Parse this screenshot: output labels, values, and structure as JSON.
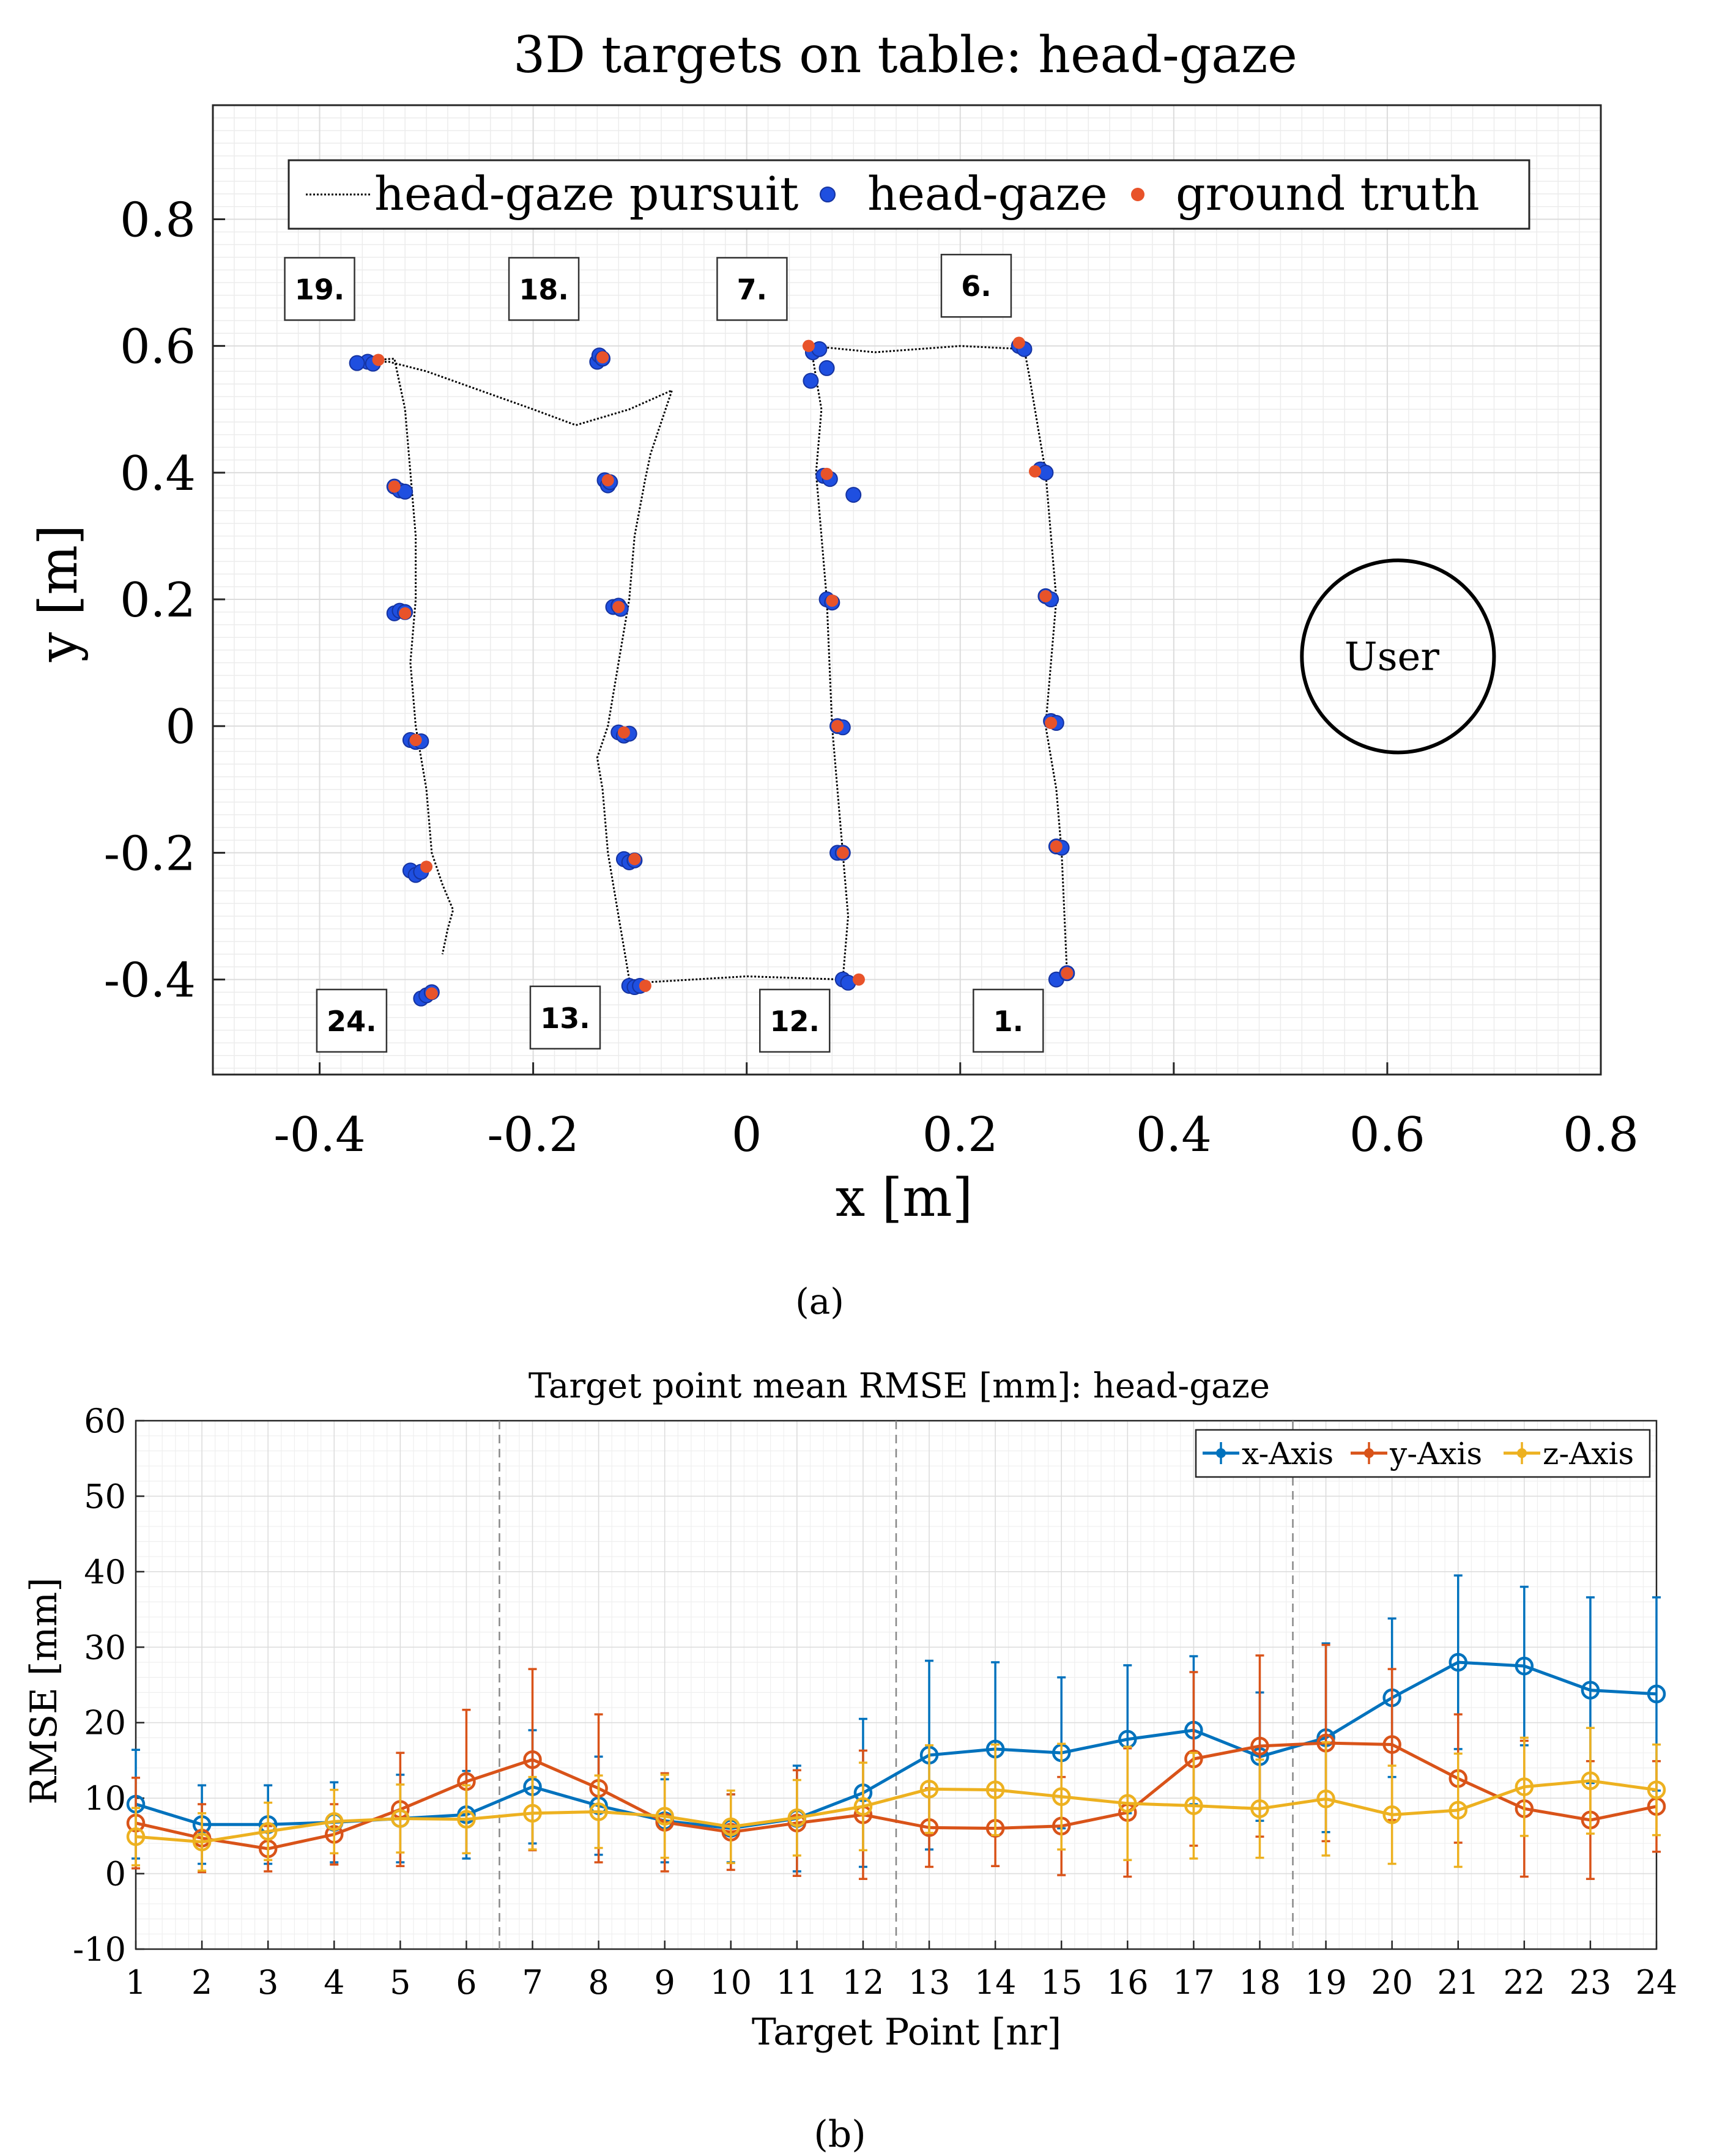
{
  "chart_data": [
    {
      "type": "scatter",
      "panel_caption": "(a)",
      "title": "3D targets on table: head-gaze",
      "xlabel": "x [m]",
      "ylabel": "y [m]",
      "xlim": [
        -0.5,
        0.8
      ],
      "ylim": [
        -0.55,
        0.98
      ],
      "xticks": [
        -0.4,
        -0.2,
        0,
        0.2,
        0.4,
        0.6,
        0.8
      ],
      "xtick_labels": [
        "-0.4",
        "-0.2",
        "0",
        "0.2",
        "0.4",
        "0.6",
        "0.8"
      ],
      "yticks": [
        -0.4,
        -0.2,
        0,
        0.2,
        0.4,
        0.6,
        0.8
      ],
      "ytick_labels": [
        "-0.4",
        "-0.2",
        "0",
        "0.2",
        "0.4",
        "0.6",
        "0.8"
      ],
      "grid": true,
      "legend_position": "top",
      "colors": {
        "pursuit": "#000000",
        "head_gaze": "#1f4fe0",
        "ground_truth": "#e8532a"
      },
      "legend": [
        "head-gaze pursuit",
        "head-gaze",
        "ground truth"
      ],
      "series": [
        {
          "name": "head-gaze pursuit",
          "style": "dotted-line",
          "x": [
            -0.37,
            -0.335,
            -0.3,
            -0.25,
            -0.2,
            -0.16,
            -0.11,
            -0.07,
            -0.08,
            -0.09,
            -0.095,
            -0.105,
            -0.11,
            -0.12,
            -0.13,
            -0.14,
            -0.135,
            -0.13,
            -0.12,
            -0.115,
            -0.11,
            -0.105,
            -0.1,
            -0.095,
            -0.1,
            -0.105,
            -0.1,
            0.0,
            0.09,
            0.095,
            0.09,
            0.085,
            0.08,
            0.075,
            0.07,
            0.065,
            0.07,
            0.06,
            0.12,
            0.2,
            0.26,
            0.265,
            0.27,
            0.28,
            0.285,
            0.29,
            0.285,
            0.28,
            0.29,
            0.295,
            0.3
          ],
          "y": [
            0.575,
            0.575,
            0.56,
            0.53,
            0.5,
            0.475,
            0.5,
            0.53,
            0.48,
            0.43,
            0.39,
            0.3,
            0.2,
            0.1,
            0.0,
            -0.05,
            -0.1,
            -0.2,
            -0.3,
            -0.35,
            -0.4,
            -0.41,
            -0.41,
            -0.41,
            -0.405,
            -0.41,
            -0.405,
            -0.395,
            -0.4,
            -0.3,
            -0.2,
            -0.1,
            0.0,
            0.2,
            0.3,
            0.4,
            0.5,
            0.6,
            0.59,
            0.6,
            0.595,
            0.55,
            0.5,
            0.4,
            0.3,
            0.2,
            0.1,
            0.0,
            -0.1,
            -0.2,
            -0.39
          ]
        },
        {
          "name": "head-gaze pursuit",
          "style": "dotted-line",
          "x": [
            -0.37,
            -0.33,
            -0.32,
            -0.315,
            -0.31,
            -0.31,
            -0.315,
            -0.31,
            -0.3,
            -0.295,
            -0.285,
            -0.275,
            -0.28,
            -0.285
          ],
          "y": [
            0.575,
            0.58,
            0.5,
            0.4,
            0.3,
            0.2,
            0.1,
            0.0,
            -0.1,
            -0.2,
            -0.25,
            -0.29,
            -0.32,
            -0.36
          ]
        },
        {
          "name": "head-gaze",
          "style": "markers",
          "points": [
            [
              -0.355,
              0.575
            ],
            [
              -0.365,
              0.573
            ],
            [
              -0.35,
              0.572
            ],
            [
              -0.33,
              0.378
            ],
            [
              -0.325,
              0.372
            ],
            [
              -0.32,
              0.37
            ],
            [
              -0.33,
              0.178
            ],
            [
              -0.325,
              0.182
            ],
            [
              -0.32,
              0.18
            ],
            [
              -0.315,
              -0.022
            ],
            [
              -0.31,
              -0.025
            ],
            [
              -0.305,
              -0.024
            ],
            [
              -0.315,
              -0.228
            ],
            [
              -0.31,
              -0.235
            ],
            [
              -0.305,
              -0.23
            ],
            [
              -0.305,
              -0.43
            ],
            [
              -0.3,
              -0.425
            ],
            [
              -0.295,
              -0.42
            ],
            [
              -0.14,
              0.575
            ],
            [
              -0.138,
              0.585
            ],
            [
              -0.135,
              0.58
            ],
            [
              -0.133,
              0.388
            ],
            [
              -0.13,
              0.38
            ],
            [
              -0.128,
              0.385
            ],
            [
              -0.125,
              0.188
            ],
            [
              -0.12,
              0.19
            ],
            [
              -0.118,
              0.185
            ],
            [
              -0.12,
              -0.01
            ],
            [
              -0.115,
              -0.015
            ],
            [
              -0.11,
              -0.012
            ],
            [
              -0.115,
              -0.21
            ],
            [
              -0.11,
              -0.215
            ],
            [
              -0.105,
              -0.212
            ],
            [
              -0.11,
              -0.41
            ],
            [
              -0.105,
              -0.412
            ],
            [
              -0.1,
              -0.41
            ],
            [
              0.062,
              0.59
            ],
            [
              0.068,
              0.595
            ],
            [
              0.075,
              0.565
            ],
            [
              0.06,
              0.545
            ],
            [
              0.072,
              0.395
            ],
            [
              0.078,
              0.39
            ],
            [
              0.1,
              0.365
            ],
            [
              0.075,
              0.2
            ],
            [
              0.08,
              0.195
            ],
            [
              0.085,
              0.0
            ],
            [
              0.09,
              -0.002
            ],
            [
              0.085,
              -0.2
            ],
            [
              0.09,
              -0.2
            ],
            [
              0.09,
              -0.4
            ],
            [
              0.095,
              -0.405
            ],
            [
              0.255,
              0.6
            ],
            [
              0.26,
              0.595
            ],
            [
              0.275,
              0.405
            ],
            [
              0.28,
              0.4
            ],
            [
              0.28,
              0.205
            ],
            [
              0.285,
              0.2
            ],
            [
              0.285,
              0.008
            ],
            [
              0.29,
              0.005
            ],
            [
              0.29,
              -0.19
            ],
            [
              0.295,
              -0.192
            ],
            [
              0.29,
              -0.4
            ],
            [
              0.3,
              -0.39
            ]
          ]
        },
        {
          "name": "ground truth",
          "style": "markers",
          "points": [
            [
              -0.345,
              0.578
            ],
            [
              -0.33,
              0.378
            ],
            [
              -0.32,
              0.178
            ],
            [
              -0.31,
              -0.022
            ],
            [
              -0.3,
              -0.222
            ],
            [
              -0.295,
              -0.422
            ],
            [
              -0.135,
              0.582
            ],
            [
              -0.13,
              0.388
            ],
            [
              -0.12,
              0.188
            ],
            [
              -0.115,
              -0.01
            ],
            [
              -0.105,
              -0.21
            ],
            [
              -0.095,
              -0.41
            ],
            [
              0.058,
              0.6
            ],
            [
              0.075,
              0.398
            ],
            [
              0.08,
              0.198
            ],
            [
              0.085,
              0.0
            ],
            [
              0.09,
              -0.2
            ],
            [
              0.105,
              -0.4
            ],
            [
              0.255,
              0.605
            ],
            [
              0.27,
              0.402
            ],
            [
              0.28,
              0.205
            ],
            [
              0.285,
              0.005
            ],
            [
              0.29,
              -0.19
            ],
            [
              0.3,
              -0.39
            ]
          ]
        }
      ],
      "target_labels": [
        {
          "text": "19.",
          "x": -0.4,
          "y": 0.69
        },
        {
          "text": "18.",
          "x": -0.19,
          "y": 0.69
        },
        {
          "text": "7.",
          "x": 0.005,
          "y": 0.69
        },
        {
          "text": "6.",
          "x": 0.215,
          "y": 0.695
        },
        {
          "text": "24.",
          "x": -0.37,
          "y": -0.465
        },
        {
          "text": "13.",
          "x": -0.17,
          "y": -0.46
        },
        {
          "text": "12.",
          "x": 0.045,
          "y": -0.465
        },
        {
          "text": "1.",
          "x": 0.245,
          "y": -0.465
        }
      ],
      "user_marker": {
        "text": "User",
        "x": 0.61,
        "y": 0.11,
        "radius": 0.09
      }
    },
    {
      "type": "line",
      "panel_caption": "(b)",
      "title": "Target point mean RMSE [mm]: head-gaze",
      "xlabel": "Target Point [nr]",
      "ylabel": "RMSE [mm]",
      "xlim": [
        1,
        24
      ],
      "ylim": [
        -10,
        60
      ],
      "xticks": [
        1,
        2,
        3,
        4,
        5,
        6,
        7,
        8,
        9,
        10,
        11,
        12,
        13,
        14,
        15,
        16,
        17,
        18,
        19,
        20,
        21,
        22,
        23,
        24
      ],
      "xtick_labels": [
        "1",
        "2",
        "3",
        "4",
        "5",
        "6",
        "7",
        "8",
        "9",
        "10",
        "11",
        "12",
        "13",
        "14",
        "15",
        "16",
        "17",
        "18",
        "19",
        "20",
        "21",
        "22",
        "23",
        "24"
      ],
      "yticks": [
        -10,
        0,
        10,
        20,
        30,
        40,
        50,
        60
      ],
      "ytick_labels": [
        "-10",
        "0",
        "10",
        "20",
        "30",
        "40",
        "50",
        "60"
      ],
      "grid": true,
      "legend_position": "top-right",
      "separators_x": [
        6.5,
        12.5,
        18.5
      ],
      "series": [
        {
          "name": "x-Axis",
          "color": "#0072bd",
          "values": [
            9.2,
            6.5,
            6.5,
            6.8,
            7.3,
            7.8,
            11.5,
            9.0,
            7.0,
            6.0,
            7.3,
            10.7,
            15.7,
            16.5,
            16.0,
            17.8,
            19.0,
            15.5,
            18.0,
            23.3,
            28.0,
            27.5,
            24.3,
            23.8
          ],
          "err": [
            7.2,
            5.2,
            5.2,
            5.3,
            5.8,
            5.8,
            7.5,
            6.5,
            5.5,
            4.5,
            7.0,
            9.8,
            12.5,
            11.5,
            10.0,
            9.8,
            9.8,
            8.5,
            12.5,
            10.5,
            11.5,
            10.5,
            12.3,
            12.8
          ]
        },
        {
          "name": "y-Axis",
          "color": "#d95319",
          "values": [
            6.7,
            4.7,
            3.3,
            5.2,
            8.5,
            12.2,
            15.1,
            11.3,
            6.8,
            5.5,
            6.7,
            7.8,
            6.1,
            6.0,
            6.3,
            8.1,
            15.2,
            16.9,
            17.3,
            17.1,
            12.6,
            8.6,
            7.1,
            8.9
          ],
          "err": [
            6.0,
            4.5,
            3.0,
            4.0,
            7.5,
            9.5,
            12.0,
            9.8,
            6.5,
            5.0,
            7.0,
            8.5,
            5.2,
            5.0,
            6.5,
            8.5,
            11.5,
            12.0,
            13.0,
            10.0,
            8.5,
            9.0,
            7.8,
            6.0
          ]
        },
        {
          "name": "z-Axis",
          "color": "#edb120",
          "values": [
            4.9,
            4.2,
            5.6,
            6.9,
            7.3,
            7.2,
            8.0,
            8.2,
            7.6,
            6.2,
            7.4,
            8.9,
            11.2,
            11.1,
            10.2,
            9.3,
            9.0,
            8.6,
            9.9,
            7.8,
            8.4,
            11.5,
            12.3,
            11.1
          ],
          "err": [
            3.8,
            3.8,
            3.8,
            4.2,
            4.5,
            4.5,
            4.8,
            4.8,
            5.5,
            4.8,
            5.0,
            5.8,
            5.8,
            6.0,
            7.0,
            7.5,
            7.0,
            6.5,
            7.5,
            6.5,
            7.5,
            6.5,
            7.0,
            6.0
          ]
        }
      ]
    }
  ]
}
